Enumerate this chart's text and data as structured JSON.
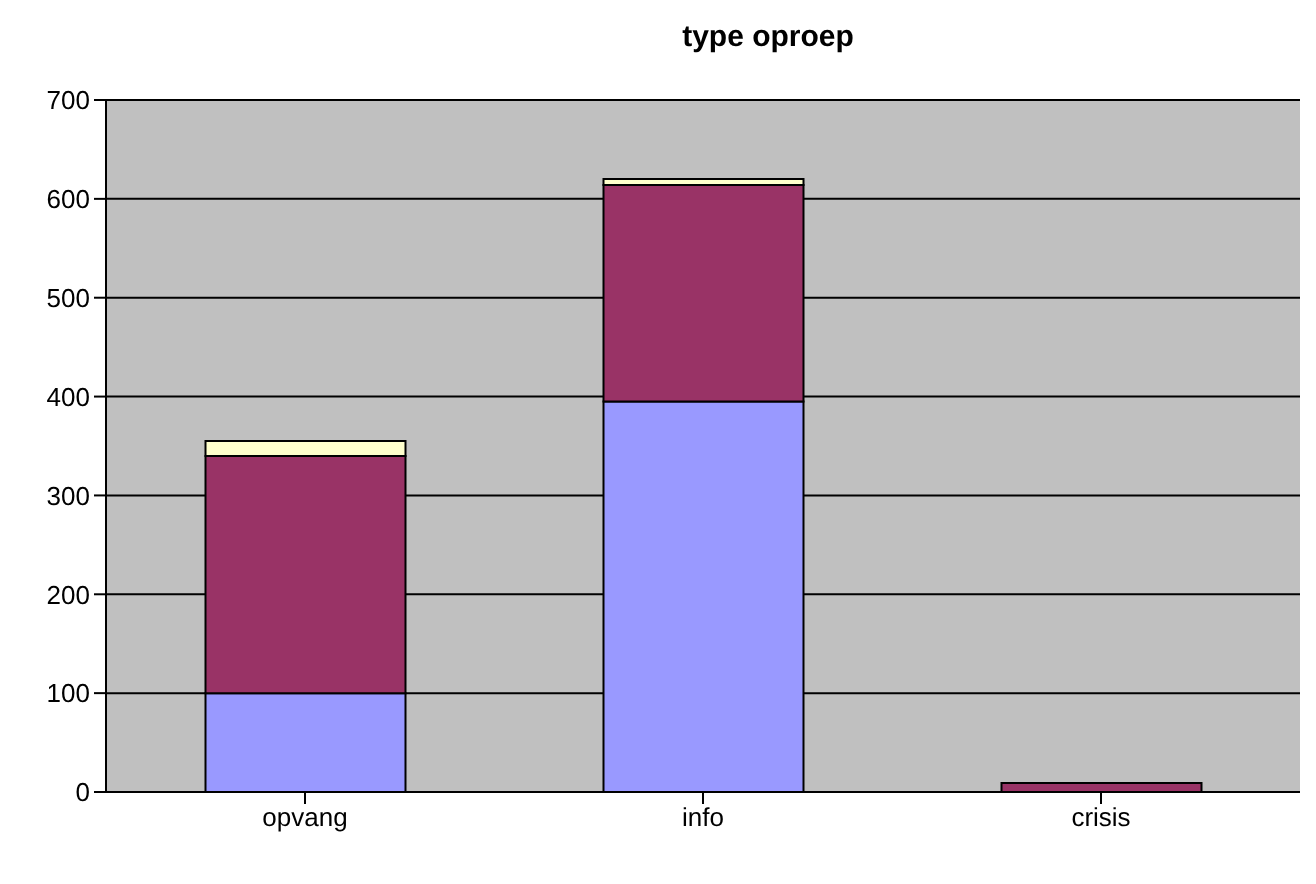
{
  "chart_data": {
    "type": "bar",
    "title": "type oproep",
    "categories": [
      "opvang",
      "info",
      "crisis"
    ],
    "stacked": true,
    "series": [
      {
        "color": "#9999ff",
        "values": [
          100,
          395,
          null
        ]
      },
      {
        "color": "#993366",
        "values": [
          240,
          219,
          9
        ]
      },
      {
        "color": "#ffffcc",
        "values": [
          15,
          6,
          0
        ]
      }
    ],
    "ylim": [
      0,
      700
    ],
    "yticks": [
      0,
      100,
      200,
      300,
      400,
      500,
      600,
      700
    ],
    "grid": "y"
  }
}
